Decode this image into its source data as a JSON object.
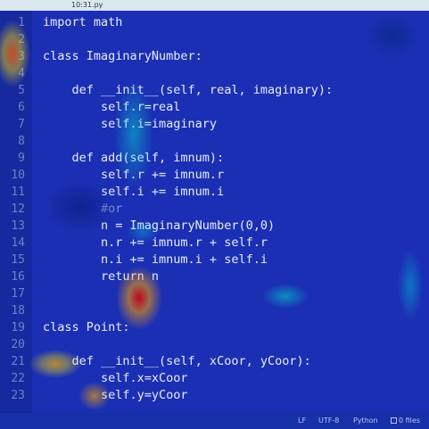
{
  "tab": {
    "title": "10:31.py"
  },
  "lines": [
    {
      "n": "1",
      "text": "import math"
    },
    {
      "n": "2",
      "text": ""
    },
    {
      "n": "3",
      "text": "class ImaginaryNumber:"
    },
    {
      "n": "4",
      "text": ""
    },
    {
      "n": "5",
      "text": "    def __init__(self, real, imaginary):"
    },
    {
      "n": "6",
      "text": "        self.r=real"
    },
    {
      "n": "7",
      "text": "        self.i=imaginary"
    },
    {
      "n": "8",
      "text": ""
    },
    {
      "n": "9",
      "text": "    def add(self, imnum):"
    },
    {
      "n": "10",
      "text": "        self.r += imnum.r"
    },
    {
      "n": "11",
      "text": "        self.i += imnum.i"
    },
    {
      "n": "12",
      "text": "        #or"
    },
    {
      "n": "13",
      "text": "        n = ImaginaryNumber(0,0)"
    },
    {
      "n": "14",
      "text": "        n.r += imnum.r + self.r"
    },
    {
      "n": "15",
      "text": "        n.i += imnum.i + self.i"
    },
    {
      "n": "16",
      "text": "        return n"
    },
    {
      "n": "17",
      "text": ""
    },
    {
      "n": "18",
      "text": ""
    },
    {
      "n": "19",
      "text": "class Point:"
    },
    {
      "n": "20",
      "text": ""
    },
    {
      "n": "21",
      "text": "    def __init__(self, xCoor, yCoor):"
    },
    {
      "n": "22",
      "text": "        self.x=xCoor"
    },
    {
      "n": "23",
      "text": "        self.y=yCoor"
    }
  ],
  "statusbar": {
    "line_ending": "LF",
    "encoding": "UTF-8",
    "language": "Python",
    "files": "0 files"
  }
}
